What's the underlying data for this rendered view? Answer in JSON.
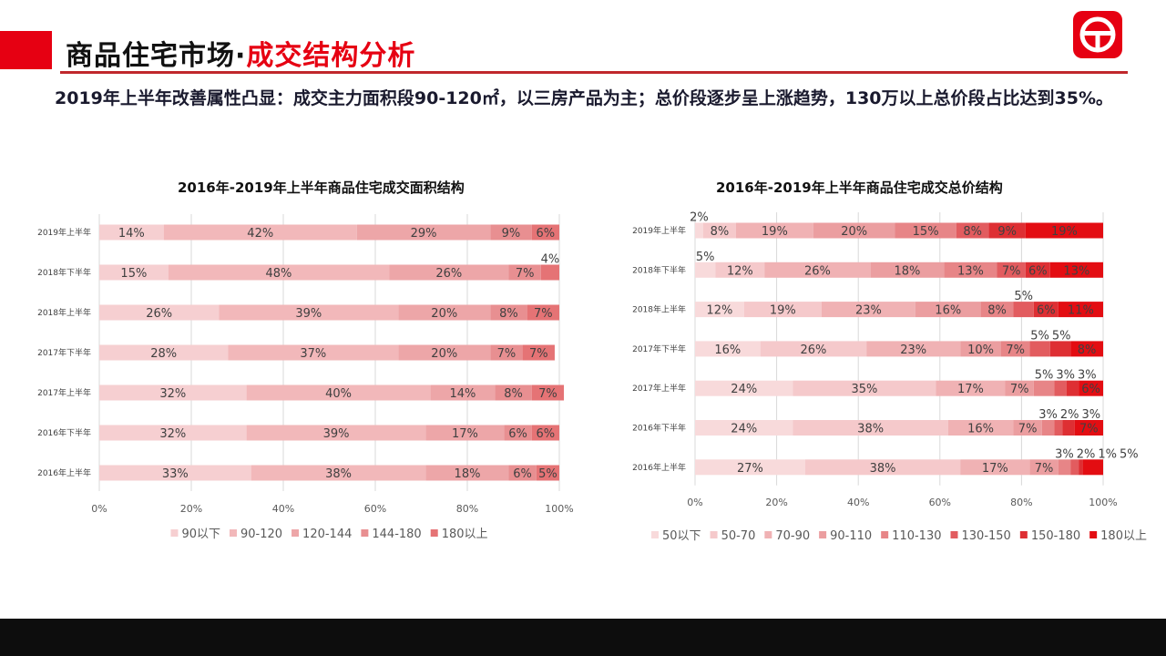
{
  "header": {
    "title_main": "商品住宅市场·",
    "title_highlight": "成交结构分析",
    "summary": "2019年上半年改善属性凸显：成交主力面积段90-120㎡，以三房产品为主；总价段逐步呈上涨趋势，130万以上总价段占比达到35%。"
  },
  "logo": {
    "icon": "G-logo-icon"
  },
  "chart_data": [
    {
      "type": "bar",
      "orientation": "horizontal",
      "stacked": "percent",
      "title": "2016年-2019年上半年商品住宅成交面积结构",
      "categories": [
        "2019年上半年",
        "2018年下半年",
        "2018年上半年",
        "2017年下半年",
        "2017年上半年",
        "2016年下半年",
        "2016年上半年"
      ],
      "xlim": [
        0,
        100
      ],
      "xticks": [
        "0%",
        "20%",
        "40%",
        "60%",
        "80%",
        "100%"
      ],
      "grid": true,
      "legend": "bottom",
      "colors": [
        "#f6cfd1",
        "#f2b8ba",
        "#eda6a8",
        "#e88f91",
        "#e57375"
      ],
      "series": [
        {
          "name": "90以下",
          "values": [
            14,
            15,
            26,
            28,
            32,
            32,
            33
          ]
        },
        {
          "name": "90-120",
          "values": [
            42,
            48,
            39,
            37,
            40,
            39,
            38
          ]
        },
        {
          "name": "120-144",
          "values": [
            29,
            26,
            20,
            20,
            14,
            17,
            18
          ]
        },
        {
          "name": "144-180",
          "values": [
            9,
            7,
            8,
            7,
            8,
            6,
            6
          ]
        },
        {
          "name": "180以上",
          "values": [
            6,
            4,
            7,
            7,
            7,
            6,
            5
          ]
        }
      ]
    },
    {
      "type": "bar",
      "orientation": "horizontal",
      "stacked": "percent",
      "title": "2016年-2019年上半年商品住宅成交总价结构",
      "categories": [
        "2019年上半年",
        "2018年下半年",
        "2018年上半年",
        "2017年下半年",
        "2017年上半年",
        "2016年下半年",
        "2016年上半年"
      ],
      "xlim": [
        0,
        100
      ],
      "xticks": [
        "0%",
        "20%",
        "40%",
        "60%",
        "80%",
        "100%"
      ],
      "grid": true,
      "legend": "bottom",
      "colors": [
        "#f8dadb",
        "#f5c9cb",
        "#f0b2b4",
        "#eb9ea0",
        "#e78587",
        "#e25c5f",
        "#de2f33",
        "#e30d12"
      ],
      "series": [
        {
          "name": "50以下",
          "values": [
            2,
            5,
            12,
            16,
            24,
            24,
            27
          ]
        },
        {
          "name": "50-70",
          "values": [
            8,
            12,
            19,
            26,
            35,
            38,
            38
          ]
        },
        {
          "name": "70-90",
          "values": [
            19,
            26,
            23,
            23,
            17,
            16,
            17
          ]
        },
        {
          "name": "90-110",
          "values": [
            20,
            18,
            16,
            10,
            7,
            7,
            7
          ]
        },
        {
          "name": "110-130",
          "values": [
            15,
            13,
            8,
            7,
            5,
            3,
            3
          ]
        },
        {
          "name": "130-150",
          "values": [
            8,
            7,
            5,
            5,
            3,
            2,
            2
          ]
        },
        {
          "name": "150-180",
          "values": [
            9,
            6,
            6,
            5,
            3,
            3,
            1
          ]
        },
        {
          "name": "180以上",
          "values": [
            19,
            13,
            11,
            8,
            6,
            7,
            5
          ]
        }
      ]
    }
  ]
}
